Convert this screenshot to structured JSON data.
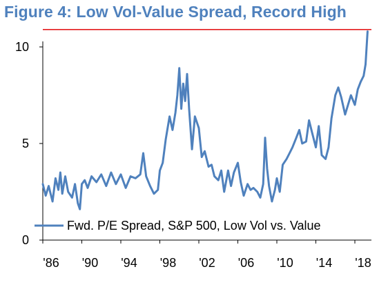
{
  "title": "Figure 4: Low Vol-Value Spread, Record High",
  "chart_data": {
    "type": "line",
    "title": "Figure 4: Low Vol-Value Spread, Record High",
    "xlabel": "",
    "ylabel": "",
    "xlim": [
      1986,
      2019.7
    ],
    "ylim": [
      0,
      11
    ],
    "x_tick_labels": [
      "'86",
      "'90",
      "'94",
      "'98",
      "'02",
      "'06",
      "'10",
      "'14",
      "'18"
    ],
    "x_tick_values": [
      1986,
      1990,
      1994,
      1998,
      2002,
      2006,
      2010,
      2014,
      2018
    ],
    "y_tick_labels": [
      "0",
      "5",
      "10"
    ],
    "y_tick_values": [
      0,
      5,
      10
    ],
    "grid": false,
    "legend_position": "bottom",
    "reference_line": {
      "y": 10.9,
      "color": "#e31a1c"
    },
    "series": [
      {
        "name": "Fwd. P/E Spread, S&P 500, Low Vol vs. Value",
        "color": "#4f81bd",
        "x": [
          1986.0,
          1986.3,
          1986.6,
          1987.0,
          1987.3,
          1987.6,
          1987.8,
          1988.0,
          1988.3,
          1988.6,
          1989.0,
          1989.3,
          1989.6,
          1989.8,
          1990.0,
          1990.3,
          1990.6,
          1991.0,
          1991.5,
          1992.0,
          1992.5,
          1993.0,
          1993.5,
          1994.0,
          1994.5,
          1995.0,
          1995.5,
          1996.0,
          1996.3,
          1996.6,
          1997.0,
          1997.4,
          1997.8,
          1998.0,
          1998.3,
          1998.6,
          1999.0,
          1999.3,
          1999.6,
          1999.8,
          2000.0,
          2000.2,
          2000.4,
          2000.6,
          2000.8,
          2001.0,
          2001.3,
          2001.6,
          2002.0,
          2002.3,
          2002.6,
          2003.0,
          2003.3,
          2003.6,
          2004.0,
          2004.3,
          2004.6,
          2005.0,
          2005.3,
          2005.6,
          2006.0,
          2006.3,
          2006.6,
          2007.0,
          2007.3,
          2007.6,
          2008.0,
          2008.3,
          2008.6,
          2008.8,
          2009.0,
          2009.2,
          2009.5,
          2009.8,
          2010.0,
          2010.3,
          2010.6,
          2011.0,
          2011.3,
          2011.6,
          2012.0,
          2012.3,
          2012.6,
          2013.0,
          2013.3,
          2013.6,
          2014.0,
          2014.3,
          2014.6,
          2015.0,
          2015.3,
          2015.6,
          2016.0,
          2016.3,
          2016.6,
          2017.0,
          2017.3,
          2017.6,
          2018.0,
          2018.3,
          2018.6,
          2018.9,
          2019.1,
          2019.3
        ],
        "y": [
          2.9,
          2.3,
          2.8,
          2.0,
          3.2,
          2.6,
          3.5,
          2.4,
          3.3,
          2.5,
          2.2,
          2.9,
          1.9,
          1.6,
          2.9,
          3.1,
          2.7,
          3.3,
          3.0,
          3.4,
          2.8,
          3.5,
          2.9,
          3.4,
          2.7,
          3.3,
          3.2,
          3.4,
          4.5,
          3.3,
          2.8,
          2.4,
          2.6,
          3.6,
          4.0,
          5.2,
          6.4,
          5.7,
          6.6,
          7.5,
          8.9,
          6.8,
          8.1,
          7.2,
          8.6,
          6.8,
          4.7,
          6.4,
          5.8,
          4.3,
          4.6,
          3.8,
          3.9,
          3.3,
          3.1,
          3.6,
          2.5,
          3.6,
          2.8,
          3.5,
          4.0,
          3.0,
          2.3,
          2.9,
          2.6,
          2.7,
          2.5,
          2.2,
          2.9,
          5.3,
          3.7,
          2.8,
          2.0,
          2.6,
          3.2,
          2.5,
          3.9,
          4.2,
          4.5,
          4.8,
          5.3,
          5.7,
          5.0,
          5.1,
          6.2,
          5.6,
          4.8,
          5.9,
          4.4,
          4.2,
          4.8,
          6.3,
          7.5,
          7.9,
          7.4,
          6.5,
          7.0,
          7.5,
          7.0,
          7.8,
          8.2,
          8.5,
          9.1,
          10.8
        ]
      }
    ]
  }
}
